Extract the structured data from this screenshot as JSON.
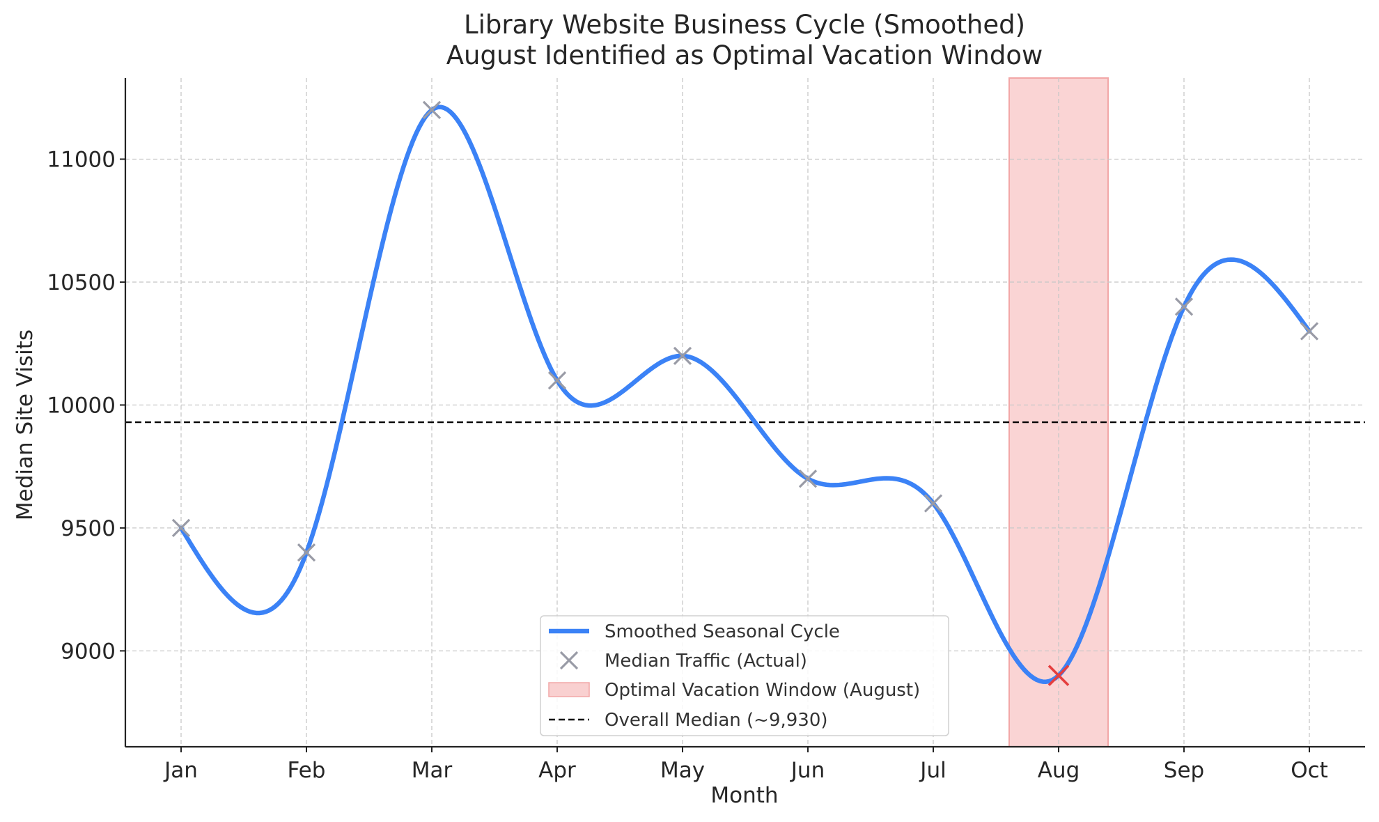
{
  "chart_data": {
    "type": "line",
    "title": "Library Website Business Cycle (Smoothed)",
    "subtitle": "August Identified as Optimal Vacation Window",
    "xlabel": "Month",
    "ylabel": "Median Site Visits",
    "categories": [
      "Jan",
      "Feb",
      "Mar",
      "Apr",
      "May",
      "Jun",
      "Jul",
      "Aug",
      "Sep",
      "Oct"
    ],
    "values": [
      9500,
      9400,
      11200,
      10100,
      10200,
      9700,
      9600,
      8900,
      10400,
      10300
    ],
    "ylim": [
      8610,
      11330
    ],
    "yticks": [
      9000,
      9500,
      10000,
      10500,
      11000
    ],
    "grid": true,
    "series": [
      {
        "name": "Smoothed Seasonal Cycle",
        "color": "#3b82f6",
        "style": "smooth-line"
      },
      {
        "name": "Median Traffic (Actual)",
        "color": "#999ba6",
        "style": "x-markers"
      }
    ],
    "highlight": {
      "name": "Optimal Vacation Window (August)",
      "category": "Aug",
      "color": "#f8c4c4",
      "marker_color": "#e53e3e"
    },
    "reference_line": {
      "name": "Overall Median (~9,930)",
      "value": 9930,
      "style": "dashed",
      "color": "#000000"
    },
    "legend_position": "bottom-center"
  }
}
